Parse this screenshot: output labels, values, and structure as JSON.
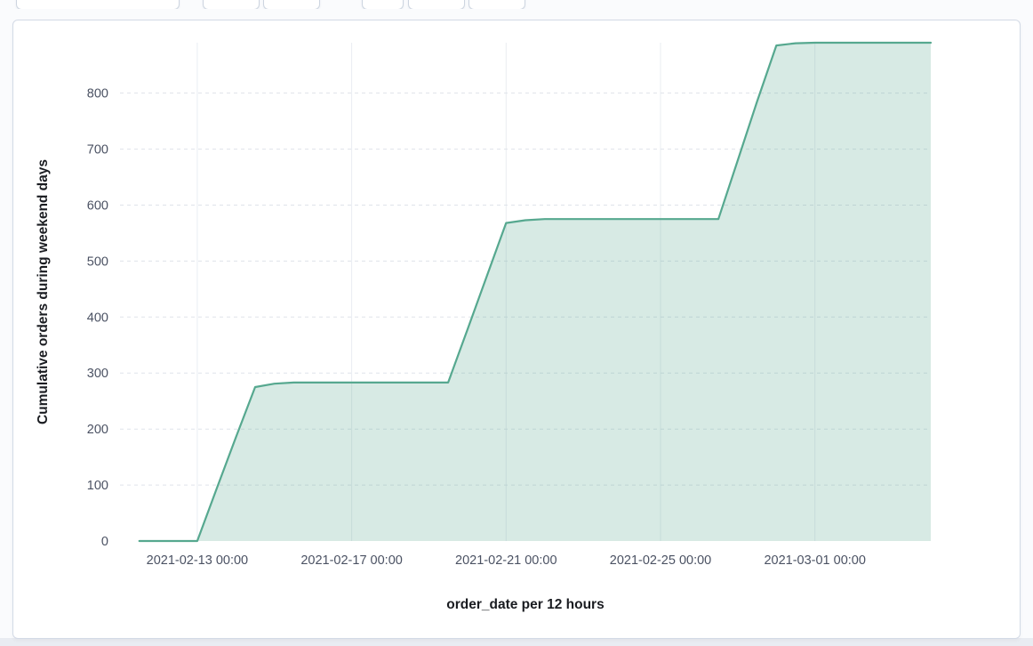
{
  "chart_data": {
    "type": "area",
    "title": "",
    "xlabel": "order_date per 12 hours",
    "ylabel": "Cumulative orders during weekend days",
    "x": [
      "2021-02-11 12:00",
      "2021-02-12 00:00",
      "2021-02-12 12:00",
      "2021-02-13 00:00",
      "2021-02-13 12:00",
      "2021-02-14 00:00",
      "2021-02-14 12:00",
      "2021-02-15 00:00",
      "2021-02-15 12:00",
      "2021-02-16 00:00",
      "2021-02-16 12:00",
      "2021-02-17 00:00",
      "2021-02-17 12:00",
      "2021-02-18 00:00",
      "2021-02-18 12:00",
      "2021-02-19 00:00",
      "2021-02-19 12:00",
      "2021-02-20 00:00",
      "2021-02-20 12:00",
      "2021-02-21 00:00",
      "2021-02-21 12:00",
      "2021-02-22 00:00",
      "2021-02-22 12:00",
      "2021-02-23 00:00",
      "2021-02-23 12:00",
      "2021-02-24 00:00",
      "2021-02-24 12:00",
      "2021-02-25 00:00",
      "2021-02-25 12:00",
      "2021-02-26 00:00",
      "2021-02-26 12:00",
      "2021-02-27 00:00",
      "2021-02-27 12:00",
      "2021-02-28 00:00",
      "2021-02-28 12:00",
      "2021-03-01 00:00",
      "2021-03-01 12:00",
      "2021-03-02 00:00",
      "2021-03-02 12:00",
      "2021-03-03 00:00",
      "2021-03-03 12:00",
      "2021-03-04 00:00"
    ],
    "values": [
      0,
      0,
      0,
      0,
      93,
      185,
      275,
      281,
      283,
      283,
      283,
      283,
      283,
      283,
      283,
      283,
      283,
      378,
      473,
      568,
      573,
      575,
      575,
      575,
      575,
      575,
      575,
      575,
      575,
      575,
      575,
      680,
      785,
      885,
      889,
      890,
      890,
      890,
      890,
      890,
      890,
      890
    ],
    "xticks": [
      "2021-02-13 00:00",
      "2021-02-17 00:00",
      "2021-02-21 00:00",
      "2021-02-25 00:00",
      "2021-03-01 00:00"
    ],
    "yticks": [
      0,
      100,
      200,
      300,
      400,
      500,
      600,
      700,
      800
    ],
    "xlim": [
      "2021-02-11 00:00",
      "2021-03-04 00:00"
    ],
    "ylim": [
      0,
      890
    ],
    "grid": {
      "horizontal": "dashed",
      "vertical": "solid"
    },
    "legend": "none",
    "colors": {
      "line": "#56a88f",
      "fill": "#56a88f",
      "fill_opacity": 0.24
    }
  }
}
